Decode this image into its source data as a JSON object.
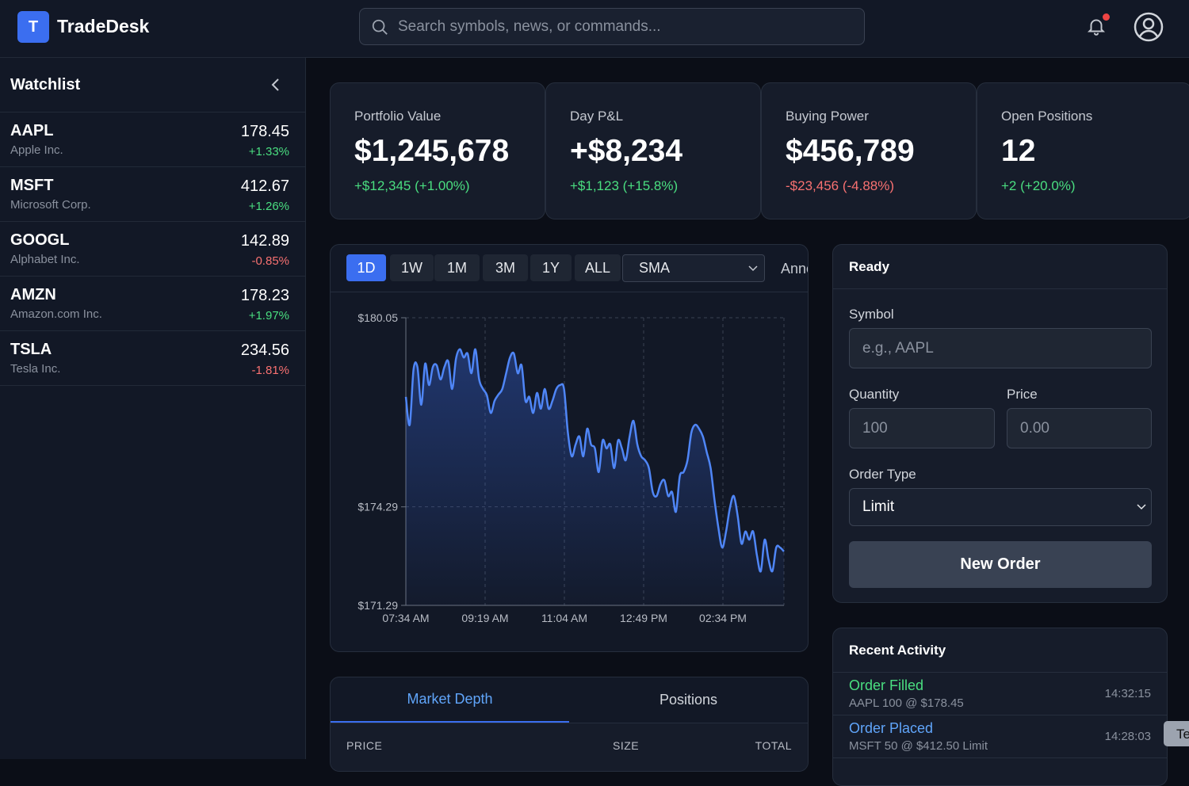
{
  "header": {
    "logo_letter": "T",
    "brand": "TradeDesk",
    "search_placeholder": "Search symbols, news, or commands...",
    "notification_dot": true
  },
  "watchlist": {
    "title": "Watchlist",
    "items": [
      {
        "symbol": "AAPL",
        "name": "Apple Inc.",
        "price": "178.45",
        "change": "+1.33%",
        "dir": "up"
      },
      {
        "symbol": "MSFT",
        "name": "Microsoft Corp.",
        "price": "412.67",
        "change": "+1.26%",
        "dir": "up"
      },
      {
        "symbol": "GOOGL",
        "name": "Alphabet Inc.",
        "price": "142.89",
        "change": "-0.85%",
        "dir": "dn"
      },
      {
        "symbol": "AMZN",
        "name": "Amazon.com Inc.",
        "price": "178.23",
        "change": "+1.97%",
        "dir": "up"
      },
      {
        "symbol": "TSLA",
        "name": "Tesla Inc.",
        "price": "234.56",
        "change": "-1.81%",
        "dir": "dn"
      }
    ]
  },
  "stats": [
    {
      "label": "Portfolio Value",
      "value": "$1,245,678",
      "change": "+$12,345 (+1.00%)",
      "dir": "up"
    },
    {
      "label": "Day P&L",
      "value": "+$8,234",
      "change": "+$1,123 (+15.8%)",
      "dir": "up"
    },
    {
      "label": "Buying Power",
      "value": "$456,789",
      "change": "-$23,456 (-4.88%)",
      "dir": "dn"
    },
    {
      "label": "Open Positions",
      "value": "12",
      "change": "+2 (+20.0%)",
      "dir": "up"
    }
  ],
  "chart_toolbar": {
    "timeframes": [
      "1D",
      "1W",
      "1M",
      "3M",
      "1Y",
      "ALL"
    ],
    "active": "1D",
    "indicator": "SMA",
    "annotate_label": "Annc"
  },
  "chart_data": {
    "type": "area",
    "y_ticks": [
      "$180.05",
      "$174.29",
      "$171.29"
    ],
    "ylim": [
      171.29,
      180.05
    ],
    "x_ticks": [
      "07:34 AM",
      "09:19 AM",
      "11:04 AM",
      "12:49 PM",
      "02:34 PM"
    ],
    "grid": true,
    "line_color": "#4f86f7",
    "values": [
      177.64,
      176.79,
      178.48,
      178.55,
      177.4,
      178.65,
      178.0,
      178.55,
      178.6,
      178.17,
      178.55,
      178.72,
      177.88,
      178.8,
      179.09,
      178.84,
      178.96,
      178.36,
      179.09,
      178.17,
      177.88,
      177.69,
      177.15,
      177.52,
      177.71,
      177.88,
      178.36,
      178.84,
      178.96,
      178.36,
      178.6,
      177.52,
      177.64,
      177.15,
      177.76,
      177.28,
      177.88,
      177.28,
      177.52,
      177.88,
      178.0,
      177.88,
      176.55,
      175.83,
      176.19,
      176.43,
      175.83,
      176.67,
      176.19,
      176.07,
      175.35,
      176.31,
      176.07,
      176.19,
      175.47,
      176.31,
      176.07,
      175.71,
      176.43,
      176.91,
      176.19,
      175.83,
      175.71,
      175.47,
      174.74,
      174.62,
      174.98,
      175.1,
      174.62,
      174.74,
      174.14,
      175.22,
      175.35,
      175.71,
      176.55,
      176.79,
      176.67,
      176.43,
      175.95,
      175.47,
      174.5,
      173.66,
      173.05,
      173.54,
      174.26,
      174.62,
      174.02,
      173.17,
      173.54,
      173.29,
      173.54,
      172.81,
      172.33,
      173.29,
      172.69,
      172.33,
      173.05,
      173.05,
      172.93
    ]
  },
  "order": {
    "status": "Ready",
    "symbol_label": "Symbol",
    "symbol_placeholder": "e.g., AAPL",
    "quantity_label": "Quantity",
    "quantity_placeholder": "100",
    "price_label": "Price",
    "price_placeholder": "0.00",
    "order_type_label": "Order Type",
    "order_type": "Limit",
    "submit": "New Order"
  },
  "activity": {
    "title": "Recent Activity",
    "items": [
      {
        "title": "Order Filled",
        "detail": "AAPL 100 @ $178.45",
        "time": "14:32:15",
        "color": "#4ade80"
      },
      {
        "title": "Order Placed",
        "detail": "MSFT 50 @ $412.50 Limit",
        "time": "14:28:03",
        "color": "#60a5fa"
      }
    ]
  },
  "toast": "Te",
  "bottom_tabs": {
    "tabs": [
      "Market Depth",
      "Positions"
    ],
    "active": "Market Depth",
    "columns": [
      "PRICE",
      "SIZE",
      "TOTAL"
    ]
  }
}
